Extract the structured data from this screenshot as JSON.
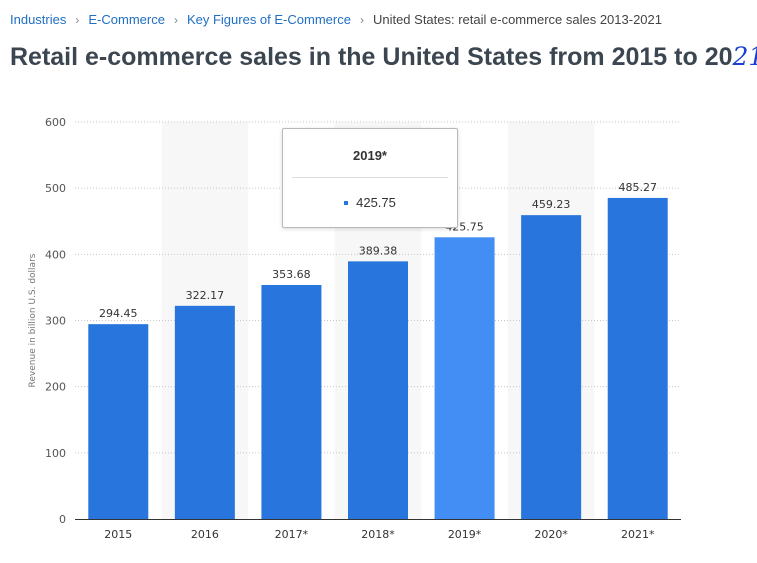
{
  "breadcrumb": {
    "items": [
      "Industries",
      "E-Commerce",
      "Key Figures of E-Commerce"
    ],
    "separator": "›",
    "current": "United States: retail e-commerce sales 2013-2021"
  },
  "page": {
    "title": "Retail e-commerce sales in the United States from 2015 to 20",
    "title_handwritten": "21"
  },
  "tooltip": {
    "title": "2019*",
    "value": "425.75"
  },
  "colors": {
    "bar": "#2876dd",
    "bar_highlight": "#438ef5",
    "link": "#1f6fc4",
    "title": "#3c4650"
  },
  "chart_data": {
    "type": "bar",
    "categories": [
      "2015",
      "2016",
      "2017*",
      "2018*",
      "2019*",
      "2020*",
      "2021*"
    ],
    "values": [
      294.45,
      322.17,
      353.68,
      389.38,
      425.75,
      459.23,
      485.27
    ],
    "value_labels": [
      "294.45",
      "322.17",
      "353.68",
      "389.38",
      "425.75",
      "459.23",
      "485.27"
    ],
    "highlighted": "2019*",
    "ylabel": "Revenue in billion U.S. dollars",
    "ylim": [
      0,
      600
    ],
    "yticks": [
      0,
      100,
      200,
      300,
      400,
      500,
      600
    ],
    "grid": true
  }
}
